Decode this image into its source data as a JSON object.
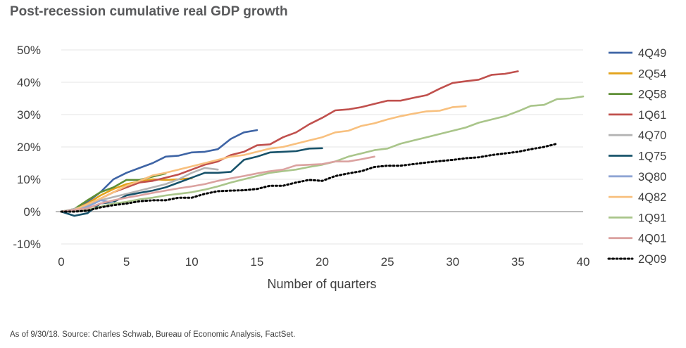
{
  "chart_data": {
    "type": "line",
    "title": "Post-recession cumulative real GDP growth",
    "xlabel": "Number of quarters",
    "ylabel": "",
    "xlim": [
      0,
      40
    ],
    "ylim": [
      -10,
      50
    ],
    "x_ticks": [
      0,
      5,
      10,
      15,
      20,
      25,
      30,
      35,
      40
    ],
    "y_ticks": [
      -10,
      0,
      10,
      20,
      30,
      40,
      50
    ],
    "y_tick_labels": [
      "-10%",
      "0%",
      "10%",
      "20%",
      "30%",
      "40%",
      "50%"
    ],
    "grid": true,
    "legend_position": "right",
    "series": [
      {
        "name": "4Q49",
        "color": "#3e64a5",
        "dash": "solid",
        "values": [
          0,
          0.5,
          3,
          6,
          10,
          12,
          13.5,
          15,
          17,
          17.3,
          18.3,
          18.5,
          19.3,
          22.5,
          24.5,
          25.2
        ]
      },
      {
        "name": "2Q54",
        "color": "#e3a21a",
        "dash": "solid",
        "values": [
          0,
          0.6,
          2.5,
          5,
          7,
          8.5,
          9.3,
          10,
          9.8,
          10,
          10.3
        ]
      },
      {
        "name": "2Q58",
        "color": "#5f8f36",
        "dash": "solid",
        "values": [
          0,
          0.8,
          3.5,
          6,
          7.5,
          9.8,
          9.8,
          10.8,
          11.8
        ]
      },
      {
        "name": "1Q61",
        "color": "#c0504d",
        "dash": "solid",
        "values": [
          0,
          0.3,
          2,
          4,
          6,
          7.5,
          9,
          9.5,
          10.5,
          11.5,
          13,
          14.5,
          15.5,
          17.5,
          18.5,
          20.5,
          20.8,
          23,
          24.5,
          27,
          29,
          31.3,
          31.6,
          32.3,
          33.3,
          34.3,
          34.3,
          35.2,
          36,
          38,
          39.8,
          40.3,
          40.8,
          42.3,
          42.6,
          43.4
        ]
      },
      {
        "name": "4Q70",
        "color": "#b4b4b4",
        "dash": "solid",
        "values": [
          0,
          0.8,
          2,
          3.5,
          4.5,
          5.5,
          6.5,
          7.5,
          8.5,
          10,
          12,
          13.5,
          13
        ]
      },
      {
        "name": "1Q75",
        "color": "#17526a",
        "dash": "solid",
        "values": [
          0,
          -1.3,
          -0.5,
          2.5,
          3,
          5,
          5.8,
          6.5,
          7.5,
          9,
          10.5,
          12,
          12,
          12.3,
          16,
          17,
          18.3,
          18.5,
          18.7,
          19.5,
          19.6
        ]
      },
      {
        "name": "3Q80",
        "color": "#8fa5d4",
        "dash": "solid",
        "values": [
          0,
          0.5,
          1.5,
          3.5,
          2.8
        ]
      },
      {
        "name": "4Q82",
        "color": "#f8c07e",
        "dash": "solid",
        "values": [
          0,
          0.5,
          2.3,
          4,
          6,
          8,
          9.5,
          11.2,
          12,
          13,
          14,
          15,
          16,
          17,
          17.5,
          18.5,
          19.5,
          20,
          21,
          22,
          23,
          24.5,
          25,
          26.5,
          27.3,
          28.5,
          29.5,
          30.3,
          31,
          31.2,
          32.3,
          32.6
        ]
      },
      {
        "name": "1Q91",
        "color": "#a9c58a",
        "dash": "solid",
        "values": [
          0,
          0.3,
          0.5,
          1.5,
          2.5,
          3,
          3.8,
          4.3,
          5,
          5.5,
          6,
          6.8,
          7.8,
          9,
          10,
          11,
          12,
          12.5,
          13,
          13.8,
          14.5,
          15.5,
          17,
          18,
          19,
          19.5,
          21,
          22,
          23,
          24,
          25,
          26,
          27.5,
          28.5,
          29.5,
          31,
          32.7,
          33,
          34.8,
          35,
          35.6
        ]
      },
      {
        "name": "4Q01",
        "color": "#dba2a0",
        "dash": "solid",
        "values": [
          0,
          0.5,
          1,
          2.5,
          3.5,
          4.3,
          5,
          5.8,
          6.5,
          7.2,
          7.8,
          8.5,
          9.5,
          10.3,
          11,
          11.8,
          12.5,
          13,
          14.3,
          14.5,
          14.7,
          15.5,
          15.5,
          16.2,
          17
        ]
      },
      {
        "name": "2Q09",
        "color": "#000000",
        "dash": "dotted",
        "values": [
          0,
          0,
          0.3,
          1.3,
          2,
          2.5,
          3.2,
          3.5,
          3.5,
          4.3,
          4.3,
          5.5,
          6.3,
          6.5,
          6.6,
          7,
          8,
          8,
          9,
          9.8,
          9.5,
          11,
          11.8,
          12.5,
          13.8,
          14.2,
          14.2,
          14.7,
          15.2,
          15.6,
          16,
          16.5,
          16.8,
          17.5,
          18,
          18.5,
          19.3,
          20,
          21
        ]
      }
    ]
  },
  "footer": {
    "source": "As of 9/30/18. Source:  Charles Schwab, Bureau of Economic Analysis, FactSet."
  }
}
